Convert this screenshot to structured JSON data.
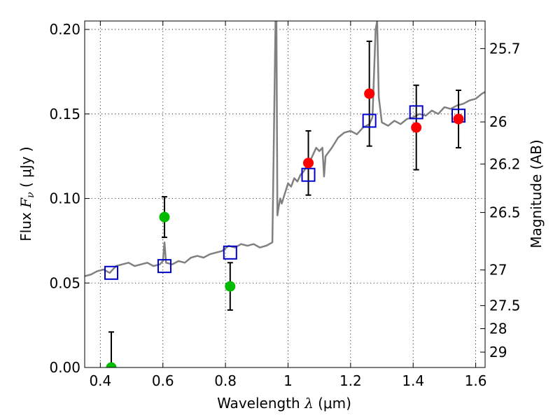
{
  "chart_data": {
    "type": "scatter",
    "xlabel_prefix": "Wavelength ",
    "xlabel_symbol": "λ",
    "xlabel_unit": " (μm)",
    "ylabel_prefix": "Flux ",
    "ylabel_symbol": "F",
    "ylabel_subscript": "ν",
    "ylabel_unit": " ( μJy )",
    "y2label": "Magnitude (AB)",
    "xlim": [
      0.35,
      1.63
    ],
    "ylim": [
      0.0,
      0.205
    ],
    "x_ticks": [
      0.4,
      0.6,
      0.8,
      1.0,
      1.2,
      1.4,
      1.6
    ],
    "x_tick_labels": [
      "0.4",
      "0.6",
      "0.8",
      "1",
      "1.2",
      "1.4",
      "1.6"
    ],
    "y_ticks": [
      0.0,
      0.05,
      0.1,
      0.15,
      0.2
    ],
    "y_tick_labels": [
      "0.00",
      "0.05",
      "0.10",
      "0.15",
      "0.20"
    ],
    "y2_ticks": [
      {
        "flux": 0.1887,
        "label": "25.7"
      },
      {
        "flux": 0.1453,
        "label": "26"
      },
      {
        "flux": 0.1204,
        "label": "26.2"
      },
      {
        "flux": 0.0917,
        "label": "26.5"
      },
      {
        "flux": 0.0577,
        "label": "27"
      },
      {
        "flux": 0.0366,
        "label": "27.5"
      },
      {
        "flux": 0.023,
        "label": "28"
      },
      {
        "flux": 0.0091,
        "label": "29"
      }
    ],
    "grid": true,
    "colors": {
      "spectrum": "#808080",
      "model": "#0000cc",
      "green_points": "#00bb00",
      "red_points": "#ff0000",
      "errorbar": "#000000"
    },
    "spectrum": {
      "x": [
        0.35,
        0.37,
        0.39,
        0.41,
        0.43,
        0.45,
        0.47,
        0.49,
        0.51,
        0.53,
        0.55,
        0.57,
        0.59,
        0.6,
        0.605,
        0.61,
        0.63,
        0.65,
        0.67,
        0.69,
        0.71,
        0.73,
        0.75,
        0.77,
        0.79,
        0.81,
        0.83,
        0.85,
        0.87,
        0.89,
        0.91,
        0.93,
        0.95,
        0.955,
        0.96,
        0.963,
        0.966,
        0.97,
        0.975,
        0.98,
        0.99,
        1.0,
        1.01,
        1.02,
        1.03,
        1.04,
        1.05,
        1.07,
        1.09,
        1.1,
        1.11,
        1.115,
        1.12,
        1.14,
        1.16,
        1.18,
        1.2,
        1.22,
        1.24,
        1.26,
        1.27,
        1.28,
        1.285,
        1.29,
        1.3,
        1.32,
        1.34,
        1.36,
        1.38,
        1.4,
        1.42,
        1.44,
        1.46,
        1.48,
        1.5,
        1.52,
        1.54,
        1.56,
        1.58,
        1.6,
        1.62,
        1.63
      ],
      "y": [
        0.054,
        0.055,
        0.057,
        0.058,
        0.056,
        0.06,
        0.061,
        0.062,
        0.06,
        0.061,
        0.062,
        0.06,
        0.061,
        0.063,
        0.074,
        0.062,
        0.061,
        0.063,
        0.062,
        0.065,
        0.066,
        0.065,
        0.067,
        0.068,
        0.069,
        0.072,
        0.071,
        0.073,
        0.072,
        0.073,
        0.071,
        0.072,
        0.074,
        0.14,
        0.205,
        0.205,
        0.09,
        0.095,
        0.1,
        0.097,
        0.103,
        0.109,
        0.107,
        0.112,
        0.11,
        0.114,
        0.116,
        0.122,
        0.13,
        0.128,
        0.13,
        0.113,
        0.125,
        0.13,
        0.136,
        0.139,
        0.14,
        0.138,
        0.142,
        0.144,
        0.148,
        0.2,
        0.205,
        0.16,
        0.145,
        0.143,
        0.146,
        0.144,
        0.147,
        0.148,
        0.15,
        0.149,
        0.152,
        0.15,
        0.154,
        0.153,
        0.155,
        0.156,
        0.158,
        0.159,
        0.162,
        0.163
      ]
    },
    "model_points": {
      "x": [
        0.435,
        0.605,
        0.815,
        1.065,
        1.26,
        1.41,
        1.545
      ],
      "y": [
        0.056,
        0.06,
        0.068,
        0.114,
        0.146,
        0.151,
        0.149
      ]
    },
    "green_points": {
      "x": [
        0.435,
        0.605,
        0.815
      ],
      "y": [
        0.0,
        0.089,
        0.048
      ],
      "err": [
        0.021,
        0.012,
        0.014
      ]
    },
    "red_points": {
      "x": [
        1.065,
        1.26,
        1.41,
        1.545
      ],
      "y": [
        0.121,
        0.162,
        0.142,
        0.147
      ],
      "err": [
        0.019,
        0.031,
        0.025,
        0.017
      ]
    }
  }
}
